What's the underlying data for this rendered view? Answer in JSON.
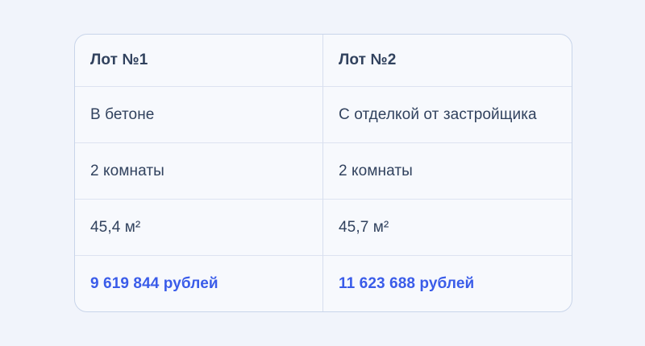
{
  "table": {
    "columns": [
      {
        "header": "Лот №1",
        "finish": "В бетоне",
        "rooms": "2 комнаты",
        "area": "45,4 м²",
        "price": "9 619 844 рублей"
      },
      {
        "header": "Лот №2",
        "finish": "С отделкой от застройщика",
        "rooms": "2 комнаты",
        "area": "45,7 м²",
        "price": "11 623 688 рублей"
      }
    ]
  },
  "colors": {
    "page_background": "#f1f4fb",
    "card_background": "#f7f9fd",
    "card_border": "#c9d5ea",
    "divider": "#dde3f1",
    "text": "#31425e",
    "accent_blue": "#3a5ce9"
  }
}
